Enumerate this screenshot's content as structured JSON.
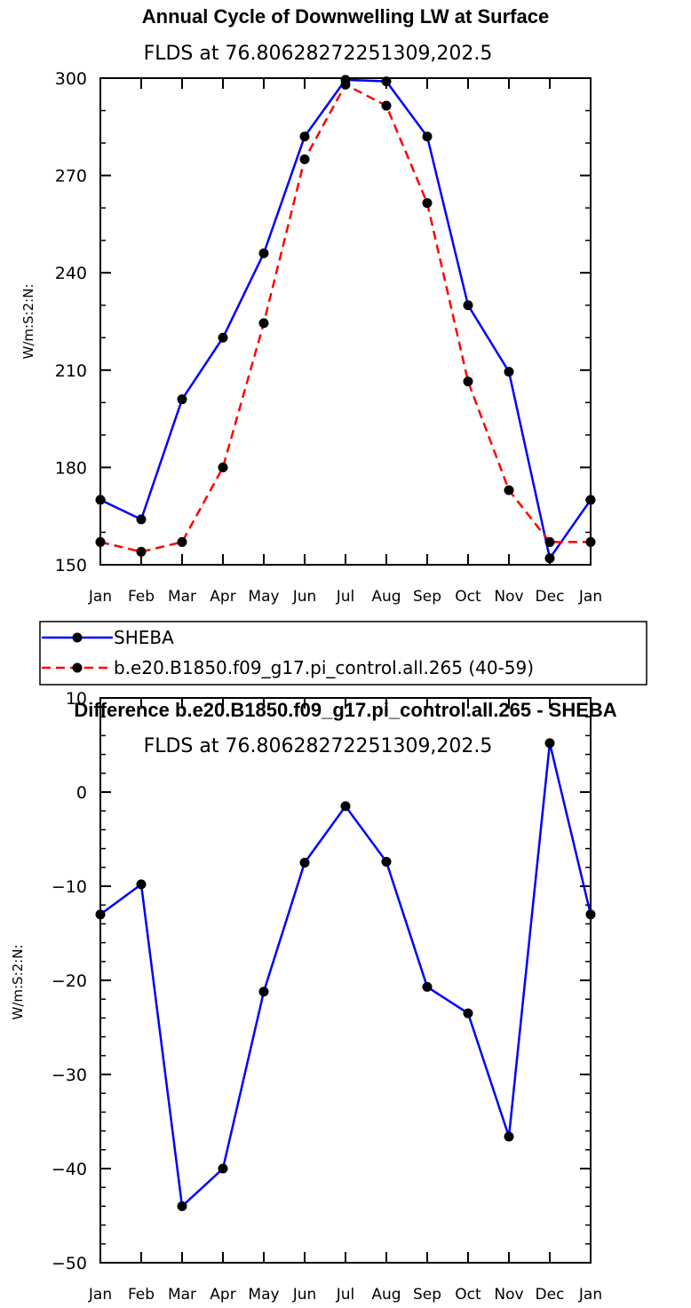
{
  "chart_data": [
    {
      "type": "line",
      "title": "Annual Cycle of Downwelling LW at Surface",
      "subtitle": "FLDS at 76.80628272251309,202.5",
      "ylabel": "W/m:S:2:N:",
      "xlabel": "",
      "ylim": [
        150,
        300
      ],
      "yticks": [
        150,
        180,
        210,
        240,
        270,
        300
      ],
      "categories": [
        "Jan",
        "Feb",
        "Mar",
        "Apr",
        "May",
        "Jun",
        "Jul",
        "Aug",
        "Sep",
        "Oct",
        "Nov",
        "Dec",
        "Jan"
      ],
      "legend_placement": "below",
      "series": [
        {
          "name": "SHEBA",
          "color": "#0000ff",
          "dash": "solid",
          "values": [
            170,
            164,
            201,
            220,
            246,
            282,
            299.5,
            299,
            282,
            230,
            209.5,
            152,
            170
          ]
        },
        {
          "name": "b.e20.B1850.f09_g17.pi_control.all.265 (40-59)",
          "color": "#ff0000",
          "dash": "dashed",
          "values": [
            157,
            154,
            157,
            180,
            224.5,
            275,
            298,
            291.5,
            261.5,
            206.5,
            173,
            157,
            157
          ]
        }
      ]
    },
    {
      "type": "line",
      "title": "Difference b.e20.B1850.f09_g17.pi_control.all.265 - SHEBA",
      "subtitle": "FLDS at 76.80628272251309,202.5",
      "ylabel": "W/m:S:2:N:",
      "xlabel": "",
      "ylim": [
        -50,
        10
      ],
      "yticks": [
        -50,
        -40,
        -30,
        -20,
        -10,
        0,
        10
      ],
      "categories": [
        "Jan",
        "Feb",
        "Mar",
        "Apr",
        "May",
        "Jun",
        "Jul",
        "Aug",
        "Sep",
        "Oct",
        "Nov",
        "Dec",
        "Jan"
      ],
      "series": [
        {
          "color": "#0000ff",
          "dash": "solid",
          "values": [
            -13,
            -9.8,
            -44,
            -40,
            -21.2,
            -7.5,
            -1.5,
            -7.4,
            -20.7,
            -23.5,
            -36.6,
            5.2,
            -13
          ]
        }
      ]
    }
  ]
}
